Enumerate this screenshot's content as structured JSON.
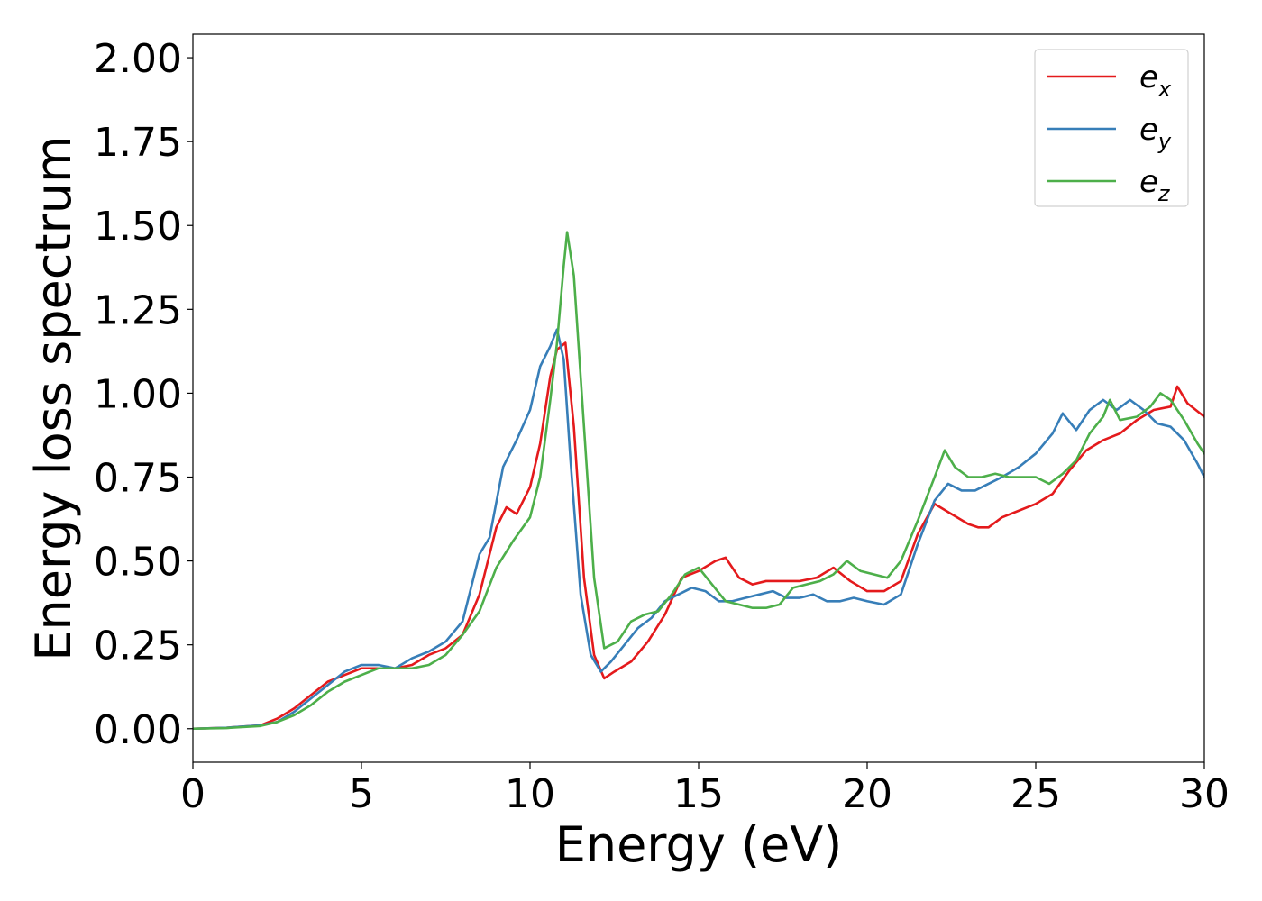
{
  "chart_data": {
    "type": "line",
    "title": "",
    "xlabel": "Energy (eV)",
    "ylabel": "Energy loss spectrum",
    "xlim": [
      0,
      30
    ],
    "ylim": [
      -0.1,
      2.07
    ],
    "xticks": [
      0,
      5,
      10,
      15,
      20,
      25,
      30
    ],
    "xtick_labels": [
      "0",
      "5",
      "10",
      "15",
      "20",
      "25",
      "30"
    ],
    "yticks": [
      0,
      0.25,
      0.5,
      0.75,
      1.0,
      1.25,
      1.5,
      1.75,
      2.0
    ],
    "ytick_labels": [
      "0.00",
      "0.25",
      "0.50",
      "0.75",
      "1.00",
      "1.25",
      "1.50",
      "1.75",
      "2.00"
    ],
    "grid": false,
    "legend_position": "top-right",
    "series": [
      {
        "name": "e_x",
        "label_base": "e",
        "label_sub": "x",
        "color": "#e41a1c",
        "x": [
          0,
          1,
          2,
          2.5,
          3,
          3.5,
          4,
          4.5,
          5,
          5.5,
          6,
          6.5,
          7,
          7.5,
          8,
          8.5,
          9,
          9.3,
          9.6,
          10,
          10.3,
          10.6,
          10.8,
          11.05,
          11.3,
          11.6,
          11.9,
          12.2,
          12.5,
          13,
          13.5,
          14,
          14.5,
          15,
          15.5,
          15.8,
          16.2,
          16.6,
          17,
          17.5,
          18,
          18.5,
          19,
          19.5,
          20,
          20.5,
          21,
          21.5,
          22,
          22.5,
          23,
          23.3,
          23.6,
          24,
          24.5,
          25,
          25.5,
          26,
          26.5,
          27,
          27.5,
          28,
          28.5,
          29,
          29.2,
          29.5,
          30
        ],
        "y": [
          0,
          0.003,
          0.01,
          0.03,
          0.06,
          0.1,
          0.14,
          0.16,
          0.18,
          0.18,
          0.18,
          0.19,
          0.22,
          0.24,
          0.28,
          0.4,
          0.6,
          0.66,
          0.64,
          0.72,
          0.85,
          1.05,
          1.13,
          1.15,
          0.9,
          0.45,
          0.22,
          0.15,
          0.17,
          0.2,
          0.26,
          0.34,
          0.45,
          0.47,
          0.5,
          0.51,
          0.45,
          0.43,
          0.44,
          0.44,
          0.44,
          0.45,
          0.48,
          0.44,
          0.41,
          0.41,
          0.44,
          0.58,
          0.67,
          0.64,
          0.61,
          0.6,
          0.6,
          0.63,
          0.65,
          0.67,
          0.7,
          0.77,
          0.83,
          0.86,
          0.88,
          0.92,
          0.95,
          0.96,
          1.02,
          0.97,
          0.93
        ]
      },
      {
        "name": "e_y",
        "label_base": "e",
        "label_sub": "y",
        "color": "#377eb8",
        "x": [
          0,
          1,
          2,
          2.5,
          3,
          3.5,
          4,
          4.5,
          5,
          5.5,
          6,
          6.5,
          7,
          7.5,
          8,
          8.5,
          8.8,
          9.2,
          9.6,
          10,
          10.3,
          10.6,
          10.8,
          11,
          11.2,
          11.5,
          11.8,
          12.1,
          12.4,
          12.8,
          13.2,
          13.6,
          14,
          14.4,
          14.8,
          15.2,
          15.6,
          16,
          16.4,
          16.8,
          17.2,
          17.6,
          18,
          18.4,
          18.8,
          19.2,
          19.6,
          20,
          20.5,
          21,
          21.5,
          22,
          22.4,
          22.8,
          23.2,
          23.6,
          24,
          24.5,
          25,
          25.5,
          25.8,
          26.2,
          26.6,
          27,
          27.4,
          27.8,
          28.2,
          28.6,
          29,
          29.4,
          29.8,
          30
        ],
        "y": [
          0,
          0.003,
          0.01,
          0.02,
          0.05,
          0.09,
          0.13,
          0.17,
          0.19,
          0.19,
          0.18,
          0.21,
          0.23,
          0.26,
          0.32,
          0.52,
          0.57,
          0.78,
          0.86,
          0.95,
          1.08,
          1.14,
          1.19,
          1.1,
          0.8,
          0.4,
          0.22,
          0.17,
          0.2,
          0.25,
          0.3,
          0.33,
          0.38,
          0.4,
          0.42,
          0.41,
          0.38,
          0.38,
          0.39,
          0.4,
          0.41,
          0.39,
          0.39,
          0.4,
          0.38,
          0.38,
          0.39,
          0.38,
          0.37,
          0.4,
          0.55,
          0.68,
          0.73,
          0.71,
          0.71,
          0.73,
          0.75,
          0.78,
          0.82,
          0.88,
          0.94,
          0.89,
          0.95,
          0.98,
          0.95,
          0.98,
          0.95,
          0.91,
          0.9,
          0.86,
          0.79,
          0.75
        ]
      },
      {
        "name": "e_z",
        "label_base": "e",
        "label_sub": "z",
        "color": "#4daf4a",
        "x": [
          0,
          1,
          2,
          2.5,
          3,
          3.5,
          4,
          4.5,
          5,
          5.5,
          6,
          6.5,
          7,
          7.5,
          8,
          8.5,
          9,
          9.5,
          10,
          10.3,
          10.6,
          10.8,
          11,
          11.1,
          11.3,
          11.6,
          11.9,
          12.2,
          12.6,
          13,
          13.4,
          13.8,
          14.2,
          14.6,
          15,
          15.4,
          15.8,
          16.2,
          16.6,
          17,
          17.4,
          17.8,
          18.2,
          18.6,
          19,
          19.4,
          19.8,
          20.2,
          20.6,
          21,
          21.5,
          22,
          22.3,
          22.6,
          23,
          23.4,
          23.8,
          24.2,
          24.6,
          25,
          25.4,
          25.8,
          26.2,
          26.6,
          27,
          27.2,
          27.5,
          28,
          28.4,
          28.7,
          29,
          29.4,
          29.8,
          30
        ],
        "y": [
          0,
          0.002,
          0.008,
          0.02,
          0.04,
          0.07,
          0.11,
          0.14,
          0.16,
          0.18,
          0.18,
          0.18,
          0.19,
          0.22,
          0.28,
          0.35,
          0.48,
          0.56,
          0.63,
          0.75,
          0.98,
          1.15,
          1.38,
          1.48,
          1.35,
          0.9,
          0.45,
          0.24,
          0.26,
          0.32,
          0.34,
          0.35,
          0.4,
          0.46,
          0.48,
          0.43,
          0.38,
          0.37,
          0.36,
          0.36,
          0.37,
          0.42,
          0.43,
          0.44,
          0.46,
          0.5,
          0.47,
          0.46,
          0.45,
          0.5,
          0.62,
          0.75,
          0.83,
          0.78,
          0.75,
          0.75,
          0.76,
          0.75,
          0.75,
          0.75,
          0.73,
          0.76,
          0.8,
          0.88,
          0.93,
          0.98,
          0.92,
          0.93,
          0.96,
          1.0,
          0.98,
          0.92,
          0.85,
          0.82
        ]
      }
    ]
  }
}
